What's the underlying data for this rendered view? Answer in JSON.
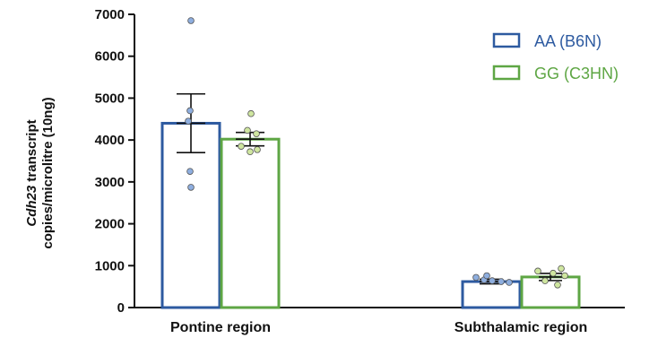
{
  "chart_data": {
    "type": "bar",
    "categories": [
      "Pontine region",
      "Subthalamic region"
    ],
    "ylim": [
      0,
      7000
    ],
    "yticks": [
      0,
      1000,
      2000,
      3000,
      4000,
      5000,
      6000,
      7000
    ],
    "ylabel_lines": [
      {
        "italic": "Cdh23",
        "rest": " transcript"
      },
      {
        "italic": "",
        "rest": "copies/microlitre (10ng)"
      }
    ],
    "legend_position": "top-right",
    "series": [
      {
        "name": "AA (B6N)",
        "color": "#2d5aa0",
        "point_fill": "#8eaedf",
        "values": [
          4400,
          620
        ],
        "error": [
          700,
          55
        ],
        "points": [
          [
            6850,
            4700,
            4450,
            3250,
            2870
          ],
          [
            720,
            660,
            640,
            620,
            600,
            760
          ]
        ]
      },
      {
        "name": "GG (C3HN)",
        "color": "#5ea644",
        "point_fill": "#cfe6a0",
        "values": [
          4020,
          730
        ],
        "error": [
          160,
          85
        ],
        "points": [
          [
            4630,
            4230,
            4150,
            3850,
            3770,
            3720
          ],
          [
            930,
            870,
            820,
            760,
            640,
            540
          ]
        ]
      }
    ]
  }
}
